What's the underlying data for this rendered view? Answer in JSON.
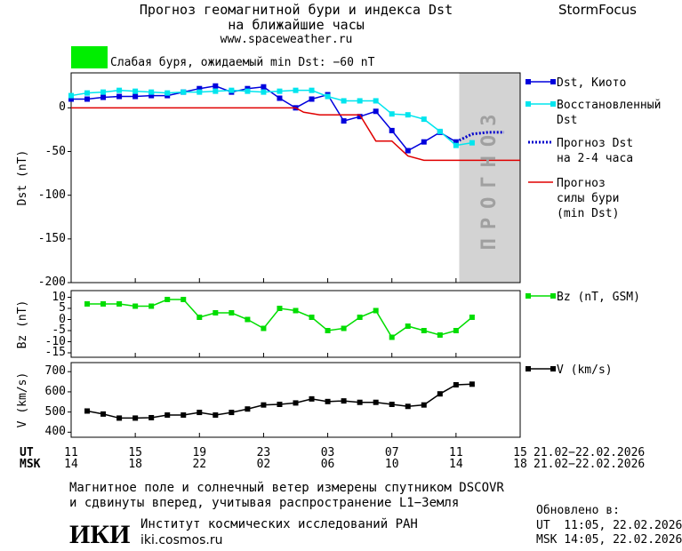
{
  "header": {
    "title": "Прогноз геомагнитной бури и индекса Dst",
    "subtitle": "на ближайшие часы",
    "url": "www.spaceweather.ru",
    "brand": "StormFocus"
  },
  "status": {
    "text": "Слабая буря, ожидаемый min Dst: −60 nT",
    "color": "#00ee00"
  },
  "chart_data": [
    {
      "type": "line",
      "ylabel": "Dst (nT)",
      "ylim": [
        -200,
        40
      ],
      "yticks": [
        0,
        -50,
        -100,
        -150,
        -200
      ],
      "xlim": [
        0,
        28
      ],
      "forecast_region": {
        "xlim": [
          24.2,
          28
        ],
        "label": "ПРОГНОЗ",
        "color": "#d3d3d3"
      },
      "series": [
        {
          "name": "Dst, Киото",
          "color": "#0000dd",
          "marker": "square",
          "x": [
            0,
            1,
            2,
            3,
            4,
            5,
            6,
            7,
            8,
            9,
            10,
            11,
            12,
            13,
            14,
            15,
            16,
            17,
            18,
            19,
            20,
            21,
            22,
            23,
            24
          ],
          "values": [
            10,
            10,
            12,
            13,
            13,
            14,
            14,
            18,
            22,
            25,
            18,
            22,
            24,
            11,
            0,
            10,
            15,
            -15,
            -10,
            -4,
            -26,
            -49,
            -39,
            -28,
            -39
          ]
        },
        {
          "name": "Восстановленный\nDst",
          "color": "#00e5ee",
          "marker": "square",
          "x": [
            0,
            1,
            2,
            3,
            4,
            5,
            6,
            7,
            8,
            9,
            10,
            11,
            12,
            13,
            14,
            15,
            16,
            17,
            18,
            19,
            20,
            21,
            22,
            23,
            24,
            25
          ],
          "values": [
            14,
            17,
            18,
            20,
            19,
            18,
            17,
            18,
            18,
            19,
            20,
            19,
            18,
            19,
            20,
            20,
            13,
            8,
            8,
            8,
            -7,
            -8,
            -13,
            -27,
            -43,
            -40
          ]
        },
        {
          "name": "Прогноз Dst\nна 2-4 часа",
          "color": "#0000cc",
          "dash": true,
          "x": [
            24,
            25,
            26,
            27
          ],
          "values": [
            -39,
            -30,
            -28,
            -28
          ]
        },
        {
          "name": "Прогноз\nсилы бури\n(min Dst)",
          "color": "#e00000",
          "x": [
            0,
            14,
            14.5,
            15.5,
            18,
            19,
            20,
            21,
            22,
            28
          ],
          "values": [
            0,
            0,
            -5,
            -8,
            -8,
            -38,
            -38,
            -55,
            -60,
            -60
          ]
        }
      ]
    },
    {
      "type": "line",
      "ylabel": "Bz (nT)",
      "ylim": [
        -17,
        13
      ],
      "yticks": [
        10,
        5,
        0,
        -5,
        -10,
        -15
      ],
      "xlim": [
        0,
        28
      ],
      "series": [
        {
          "name": "Bz (nT, GSM)",
          "color": "#00dd00",
          "marker": "square",
          "x": [
            1,
            2,
            3,
            4,
            5,
            6,
            7,
            8,
            9,
            10,
            11,
            12,
            13,
            14,
            15,
            16,
            17,
            18,
            19,
            20,
            21,
            22,
            23,
            24,
            25
          ],
          "values": [
            7,
            7,
            7,
            6,
            6,
            9,
            9,
            1,
            3,
            3,
            0,
            -4,
            5,
            4,
            1,
            -5,
            -4,
            1,
            4,
            -8,
            -3,
            -5,
            -7,
            -5,
            1
          ]
        }
      ]
    },
    {
      "type": "line",
      "ylabel": "V (km/s)",
      "ylim": [
        375,
        745
      ],
      "yticks": [
        700,
        600,
        500,
        400
      ],
      "xlim": [
        0,
        28
      ],
      "xticks": [
        {
          "value": 0,
          "label": "11"
        },
        {
          "value": 4,
          "label": "15"
        },
        {
          "value": 8,
          "label": "19"
        },
        {
          "value": 12,
          "label": "23"
        },
        {
          "value": 16,
          "label": "03"
        },
        {
          "value": 20,
          "label": "07"
        },
        {
          "value": 24,
          "label": "11"
        },
        {
          "value": 28,
          "label": "15"
        }
      ],
      "xticks_msk": [
        {
          "value": 0,
          "label": "14"
        },
        {
          "value": 4,
          "label": "18"
        },
        {
          "value": 8,
          "label": "22"
        },
        {
          "value": 12,
          "label": "02"
        },
        {
          "value": 16,
          "label": "06"
        },
        {
          "value": 20,
          "label": "10"
        },
        {
          "value": 24,
          "label": "14"
        },
        {
          "value": 28,
          "label": "18"
        }
      ],
      "xaxis_ut": "UT",
      "xaxis_msk": "MSK",
      "date_range_ut": "21.02−22.02.2026",
      "date_range_msk": "21.02−22.02.2026",
      "series": [
        {
          "name": "V (km/s)",
          "color": "#000000",
          "marker": "square",
          "x": [
            1,
            2,
            3,
            4,
            5,
            6,
            7,
            8,
            9,
            10,
            11,
            12,
            13,
            14,
            15,
            16,
            17,
            18,
            19,
            20,
            21,
            22,
            23,
            24,
            25
          ],
          "values": [
            505,
            490,
            470,
            470,
            472,
            485,
            485,
            498,
            485,
            498,
            515,
            535,
            538,
            545,
            565,
            552,
            555,
            548,
            548,
            538,
            528,
            535,
            590,
            635,
            638
          ]
        }
      ]
    }
  ],
  "footer": {
    "note1": "Магнитное поле и солнечный ветер измерены спутником DSCOVR",
    "note2": "и сдвинуты вперед, учитывая распространение L1−Земля",
    "updated": "Обновлено в:",
    "updated_ut": "UT  11:05, 22.02.2026",
    "updated_msk": "MSK 14:05, 22.02.2026",
    "logo": "ИКИ",
    "institute": "Институт космических исследований РАН",
    "institute_url": "iki.cosmos.ru"
  }
}
